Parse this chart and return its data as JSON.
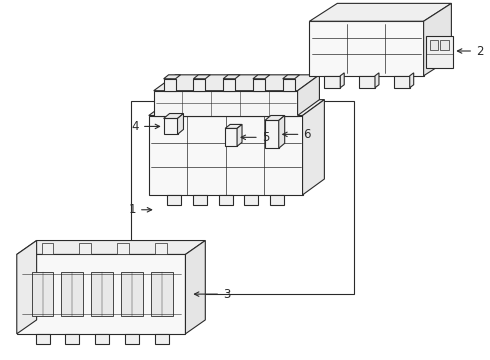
{
  "background_color": "#ffffff",
  "line_color": "#2a2a2a",
  "fig_width": 4.9,
  "fig_height": 3.6,
  "dpi": 100
}
